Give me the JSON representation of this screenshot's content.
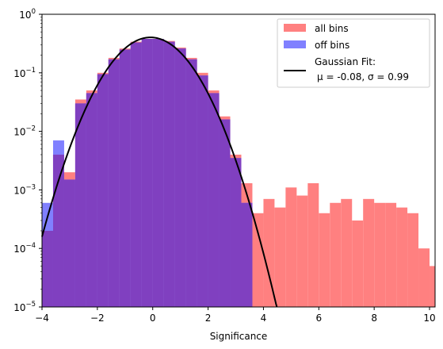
{
  "chart_data": {
    "type": "bar",
    "title": "",
    "xlabel": "Significance",
    "ylabel": "",
    "xlim": [
      -4.0,
      10.2
    ],
    "ylim": [
      1e-05,
      1
    ],
    "yscale": "log",
    "grid": false,
    "legend_position": "top-right",
    "bin_width": 0.4,
    "x_ticks": [
      {
        "value": -4,
        "label": "−4"
      },
      {
        "value": -2,
        "label": "−2"
      },
      {
        "value": 0,
        "label": "0"
      },
      {
        "value": 2,
        "label": "2"
      },
      {
        "value": 4,
        "label": "4"
      },
      {
        "value": 6,
        "label": "6"
      },
      {
        "value": 8,
        "label": "8"
      },
      {
        "value": 10,
        "label": "10"
      }
    ],
    "y_ticks": [
      {
        "exp": 0,
        "base": "10",
        "sup": "0"
      },
      {
        "exp": -1,
        "base": "10",
        "sup": "−1"
      },
      {
        "exp": -2,
        "base": "10",
        "sup": "−2"
      },
      {
        "exp": -3,
        "base": "10",
        "sup": "−3"
      },
      {
        "exp": -4,
        "base": "10",
        "sup": "−4"
      },
      {
        "exp": -5,
        "base": "10",
        "sup": "−5"
      }
    ],
    "series": [
      {
        "name": "all bins",
        "color": "#ff8080",
        "bin_starts": [
          -4.0,
          -3.6,
          -3.2,
          -2.8,
          -2.4,
          -2.0,
          -1.6,
          -1.2,
          -0.8,
          -0.4,
          0.0,
          0.4,
          0.8,
          1.2,
          1.6,
          2.0,
          2.4,
          2.8,
          3.2,
          3.6,
          4.0,
          4.4,
          4.8,
          5.2,
          5.6,
          6.0,
          6.4,
          6.8,
          7.2,
          7.6,
          8.0,
          8.4,
          8.8,
          9.2,
          9.6,
          10.0
        ],
        "values": [
          0.0002,
          0.004,
          0.002,
          0.035,
          0.05,
          0.1,
          0.18,
          0.26,
          0.34,
          0.38,
          0.38,
          0.35,
          0.27,
          0.18,
          0.1,
          0.05,
          0.018,
          0.004,
          0.0013,
          0.0004,
          0.0007,
          0.0005,
          0.0011,
          0.0008,
          0.0013,
          0.0004,
          0.0006,
          0.0007,
          0.0003,
          0.0007,
          0.0006,
          0.0006,
          0.0005,
          0.0004,
          0.0001,
          5e-05
        ]
      },
      {
        "name": "off bins",
        "color": "#8080ff",
        "bin_starts": [
          -4.0,
          -3.6,
          -3.2,
          -2.8,
          -2.4,
          -2.0,
          -1.6,
          -1.2,
          -0.8,
          -0.4,
          0.0,
          0.4,
          0.8,
          1.2,
          1.6,
          2.0,
          2.4,
          2.8,
          3.2
        ],
        "values": [
          0.0006,
          0.007,
          0.0015,
          0.03,
          0.045,
          0.095,
          0.17,
          0.25,
          0.33,
          0.38,
          0.38,
          0.34,
          0.26,
          0.17,
          0.09,
          0.045,
          0.016,
          0.0035,
          0.0006
        ]
      }
    ],
    "fit": {
      "name_line1": "Gaussian Fit:",
      "name_line2": "μ = -0.08, σ = 0.99",
      "color": "#000000",
      "mu": -0.08,
      "sigma": 0.99
    }
  }
}
